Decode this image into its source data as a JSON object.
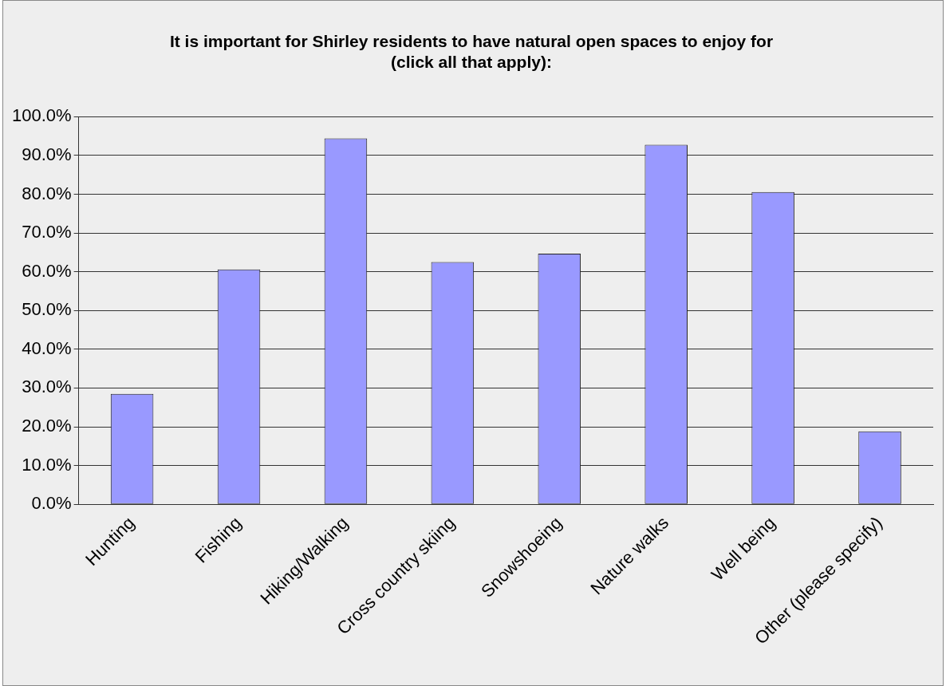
{
  "chart_data": {
    "type": "bar",
    "title": "It is important for Shirley residents to have natural open spaces to enjoy for\n(click all that apply):",
    "categories": [
      "Hunting",
      "Fishing",
      "Hiking/Walking",
      "Cross country skiing",
      "Snowshoeing",
      "Nature walks",
      "Well being",
      "Other (please specify)"
    ],
    "values": [
      28.5,
      60.6,
      94.4,
      62.5,
      64.7,
      92.8,
      80.6,
      18.8
    ],
    "color": "#9999ff",
    "ylim": [
      0,
      100
    ],
    "yticks": [
      {
        "value": 0,
        "label": "0.0%"
      },
      {
        "value": 10,
        "label": "10.0%"
      },
      {
        "value": 20,
        "label": "20.0%"
      },
      {
        "value": 30,
        "label": "30.0%"
      },
      {
        "value": 40,
        "label": "40.0%"
      },
      {
        "value": 50,
        "label": "50.0%"
      },
      {
        "value": 60,
        "label": "60.0%"
      },
      {
        "value": 70,
        "label": "70.0%"
      },
      {
        "value": 80,
        "label": "80.0%"
      },
      {
        "value": 90,
        "label": "90.0%"
      },
      {
        "value": 100,
        "label": "100.0%"
      }
    ],
    "grid": "y",
    "legend": false
  }
}
